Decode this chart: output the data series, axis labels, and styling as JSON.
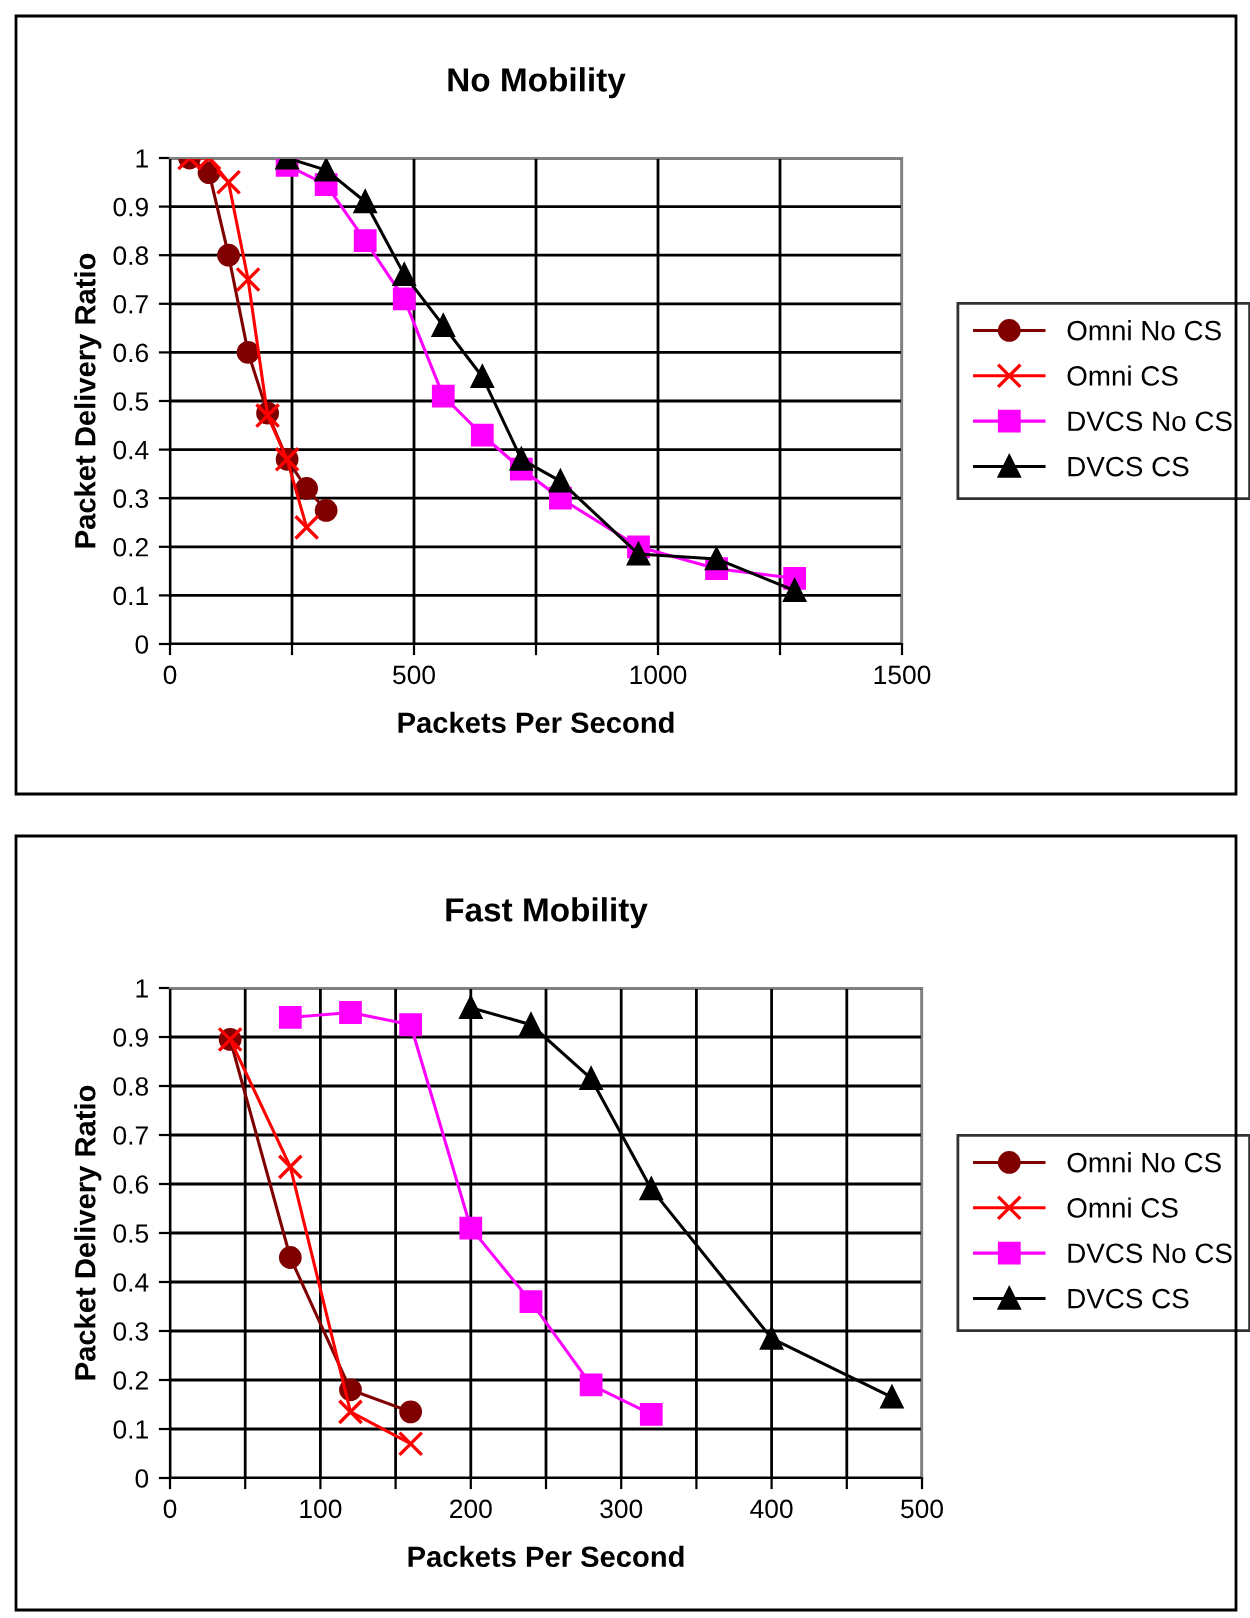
{
  "chart_data": [
    {
      "type": "line",
      "title": "No Mobility",
      "xlabel": "Packets Per Second",
      "ylabel": "Packet Delivery Ratio",
      "xlim": [
        0,
        1500
      ],
      "xticks": [
        0,
        {
          "value": 250,
          "label": null
        },
        500,
        {
          "value": 750,
          "label": null
        },
        1000,
        {
          "value": 1250,
          "label": null
        },
        1500
      ],
      "ylim": [
        0,
        1
      ],
      "yticks": [
        0,
        0.1,
        0.2,
        0.3,
        0.4,
        0.5,
        0.6,
        0.7,
        0.8,
        0.9,
        1
      ],
      "grid": true,
      "legend": "right",
      "series": [
        {
          "name": "Omni No CS",
          "color": "#800000",
          "marker": "circle",
          "x": [
            40,
            80,
            120,
            160,
            200,
            240,
            280,
            320
          ],
          "values": [
            1.0,
            0.97,
            0.8,
            0.6,
            0.475,
            0.38,
            0.32,
            0.275
          ]
        },
        {
          "name": "Omni CS",
          "color": "#ff0000",
          "marker": "cross",
          "x": [
            40,
            80,
            120,
            160,
            200,
            240,
            280
          ],
          "values": [
            1.0,
            1.0,
            0.95,
            0.75,
            0.47,
            0.38,
            0.24
          ]
        },
        {
          "name": "DVCS No CS",
          "color": "#ff00ff",
          "marker": "square",
          "x": [
            240,
            320,
            400,
            480,
            560,
            640,
            720,
            800,
            960,
            1120,
            1280
          ],
          "values": [
            0.985,
            0.945,
            0.83,
            0.71,
            0.51,
            0.43,
            0.36,
            0.3,
            0.2,
            0.155,
            0.135
          ]
        },
        {
          "name": "DVCS CS",
          "color": "#000000",
          "marker": "triangle",
          "x": [
            240,
            320,
            400,
            480,
            560,
            640,
            720,
            800,
            960,
            1120,
            1280
          ],
          "values": [
            1.0,
            0.975,
            0.91,
            0.76,
            0.655,
            0.55,
            0.38,
            0.335,
            0.185,
            0.175,
            0.11
          ]
        }
      ]
    },
    {
      "type": "line",
      "title": "Fast Mobility",
      "xlabel": "Packets Per Second",
      "ylabel": "Packet Delivery Ratio",
      "xlim": [
        0,
        500
      ],
      "xticks": [
        0,
        {
          "value": 50,
          "label": null
        },
        100,
        {
          "value": 150,
          "label": null
        },
        200,
        {
          "value": 250,
          "label": null
        },
        300,
        {
          "value": 350,
          "label": null
        },
        400,
        {
          "value": 450,
          "label": null
        },
        500
      ],
      "ylim": [
        0,
        1
      ],
      "yticks": [
        0,
        0.1,
        0.2,
        0.3,
        0.4,
        0.5,
        0.6,
        0.7,
        0.8,
        0.9,
        1
      ],
      "grid": true,
      "legend": "right",
      "series": [
        {
          "name": "Omni No CS",
          "color": "#800000",
          "marker": "circle",
          "x": [
            40,
            80,
            120,
            160
          ],
          "values": [
            0.895,
            0.45,
            0.18,
            0.135
          ]
        },
        {
          "name": "Omni CS",
          "color": "#ff0000",
          "marker": "cross",
          "x": [
            40,
            80,
            120,
            160
          ],
          "values": [
            0.895,
            0.635,
            0.135,
            0.07
          ]
        },
        {
          "name": "DVCS No CS",
          "color": "#ff00ff",
          "marker": "square",
          "x": [
            80,
            120,
            160,
            200,
            240,
            280,
            320
          ],
          "values": [
            0.94,
            0.95,
            0.925,
            0.51,
            0.36,
            0.19,
            0.13
          ]
        },
        {
          "name": "DVCS CS",
          "color": "#000000",
          "marker": "triangle",
          "x": [
            200,
            240,
            280,
            320,
            400,
            480
          ],
          "values": [
            0.96,
            0.925,
            0.815,
            0.59,
            0.285,
            0.165
          ]
        }
      ]
    }
  ]
}
